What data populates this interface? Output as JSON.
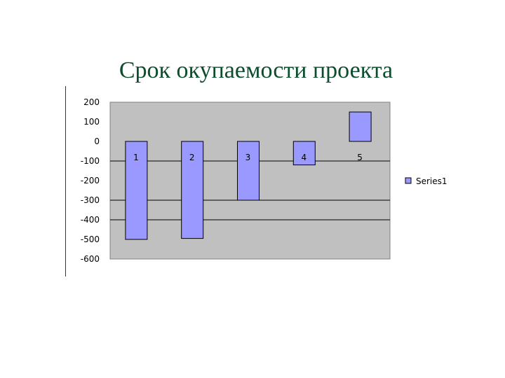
{
  "chart_data": {
    "type": "bar",
    "title": "Срок окупаемости проекта",
    "categories": [
      "1",
      "2",
      "3",
      "4",
      "5"
    ],
    "series": [
      {
        "name": "Series1",
        "values": [
          -500,
          -495,
          -300,
          -120,
          150
        ],
        "color": "#9999ff"
      }
    ],
    "ylim": [
      -600,
      200
    ],
    "yticks": [
      "200",
      "100",
      "0",
      "-100",
      "-200",
      "-300",
      "-400",
      "-500",
      "-600"
    ],
    "gridlines": [
      -100,
      -300,
      -400
    ],
    "plot_bg": "#c0c0c0",
    "legend": "right"
  }
}
